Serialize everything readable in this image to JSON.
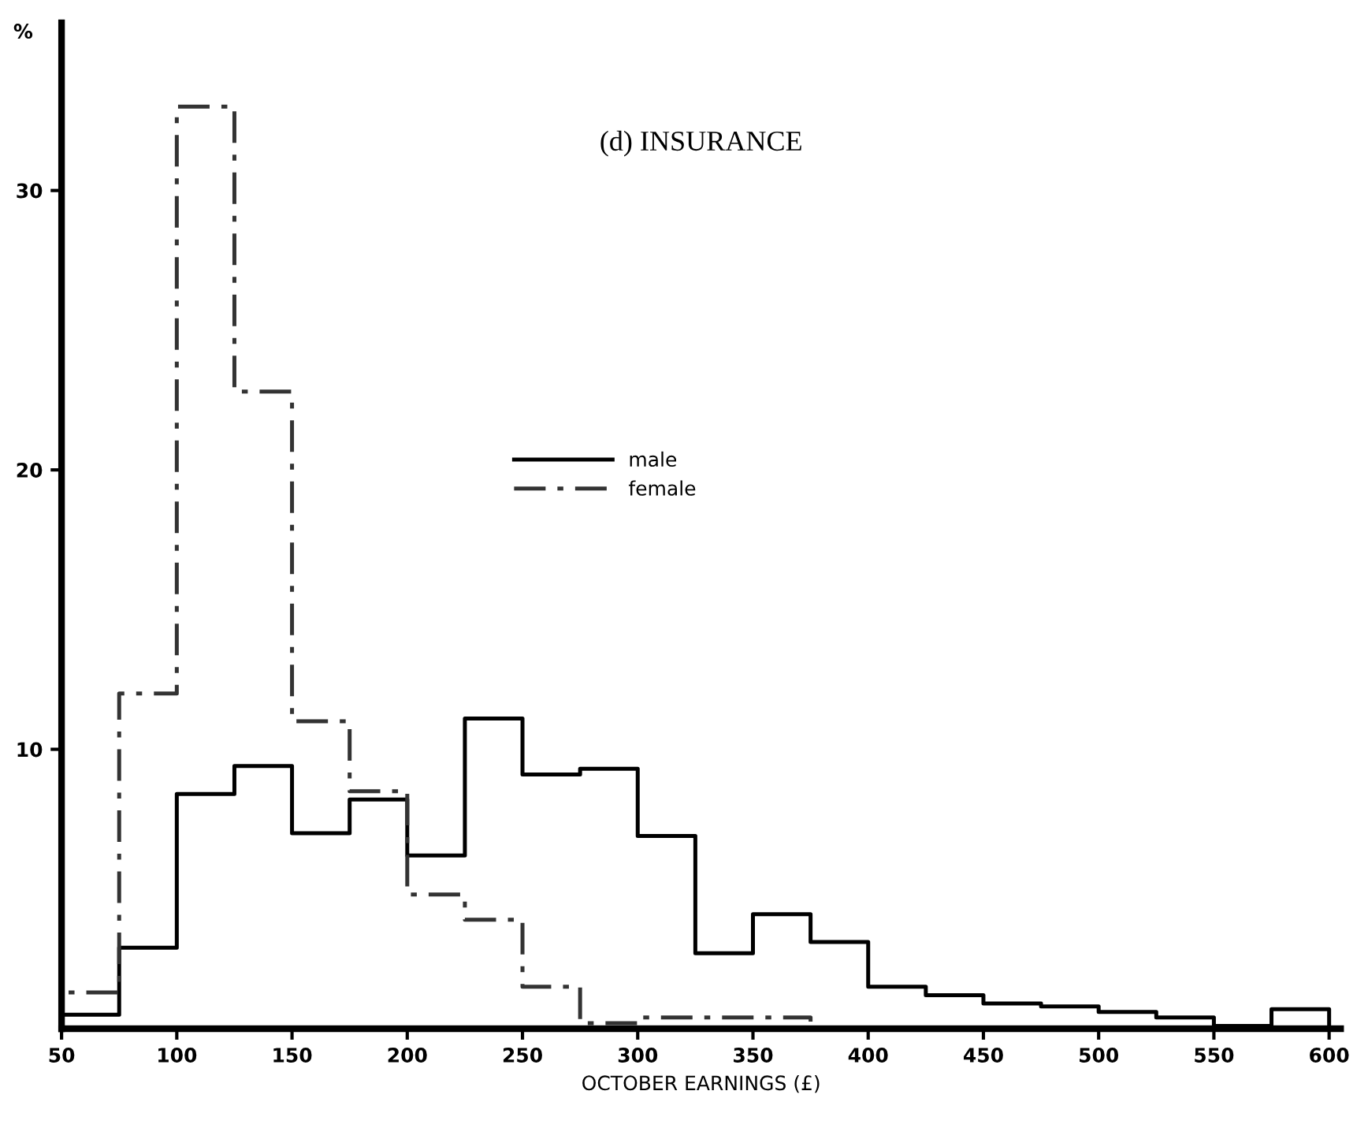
{
  "chart_data": {
    "type": "histogram",
    "title": "(d) INSURANCE",
    "xlabel": "OCTOBER EARNINGS (£)",
    "ylabel": "%",
    "bins": [
      50,
      75,
      100,
      125,
      150,
      175,
      200,
      225,
      250,
      275,
      300,
      325,
      350,
      375,
      400,
      425,
      450,
      475,
      500,
      525,
      550,
      575,
      600
    ],
    "series": [
      {
        "name": "male",
        "color": "#000000",
        "line_style": "solid",
        "values": [
          0.5,
          2.9,
          8.4,
          9.4,
          7.0,
          8.2,
          6.2,
          11.1,
          9.1,
          9.3,
          6.9,
          2.7,
          4.1,
          3.1,
          1.5,
          1.2,
          0.9,
          0.8,
          0.6,
          0.4,
          0.1,
          0.7
        ]
      },
      {
        "name": "female",
        "color": "#333333",
        "line_style": "dashdot",
        "values": [
          1.3,
          12.0,
          33.0,
          22.8,
          11.0,
          8.5,
          4.8,
          3.9,
          1.5,
          0.2,
          0.4,
          0.4,
          0.4,
          0.0,
          0.0,
          0.0,
          0.0,
          0.0,
          0.0,
          0.0,
          0.0,
          0.0
        ]
      }
    ],
    "xlim": [
      50,
      605
    ],
    "ylim": [
      0,
      36
    ],
    "xticks": [
      50,
      100,
      150,
      200,
      250,
      300,
      350,
      400,
      450,
      500,
      550,
      600
    ],
    "yticks": [
      10,
      20,
      30
    ],
    "grid": false,
    "legend": "center"
  }
}
